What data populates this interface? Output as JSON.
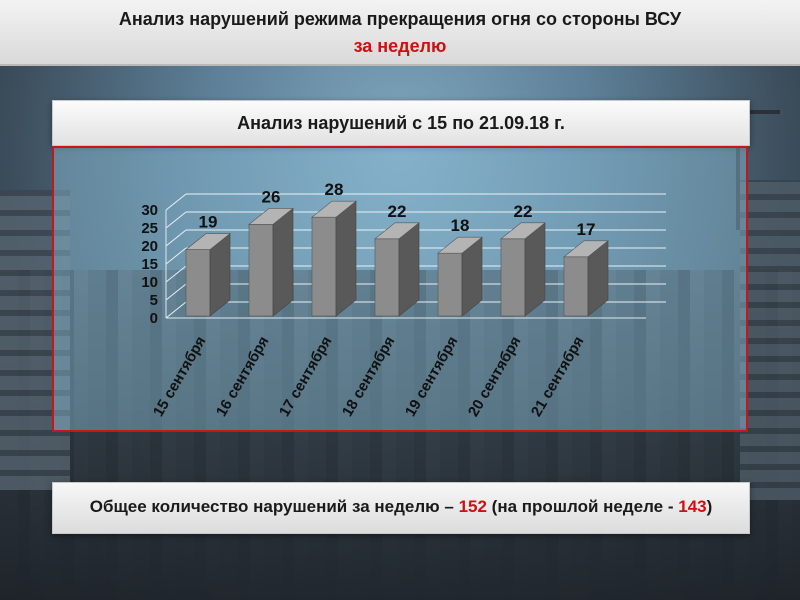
{
  "header": {
    "title": "Анализ нарушений режима прекращения огня со стороны ВСУ",
    "subtitle": "за неделю"
  },
  "chart_box": {
    "title": "Анализ нарушений с 15 по 21.09.18 г."
  },
  "chart_data": {
    "type": "bar",
    "title": "Анализ нарушений с 15 по 21.09.18 г.",
    "categories": [
      "15 сентября",
      "16 сентября",
      "17 сентября",
      "18 сентября",
      "19 сентября",
      "20 сентября",
      "21 сентября"
    ],
    "values": [
      19,
      26,
      28,
      22,
      18,
      22,
      17
    ],
    "xlabel": "",
    "ylabel": "",
    "ylim": [
      0,
      30
    ],
    "yticks": [
      "0",
      "5",
      "10",
      "15",
      "20",
      "25",
      "30"
    ],
    "grid": true,
    "style": "3d-columns",
    "colors": {
      "front": "#8c8c8c",
      "side": "#595959",
      "top": "#b4b4b4"
    }
  },
  "footer": {
    "text_before": "Общее количество нарушений за неделю – ",
    "total": "152",
    "text_middle": " (на прошлой неделе - ",
    "previous": "143",
    "text_after": ")"
  },
  "colors": {
    "accent_red": "#d01010",
    "frame_red": "#c8141b"
  }
}
